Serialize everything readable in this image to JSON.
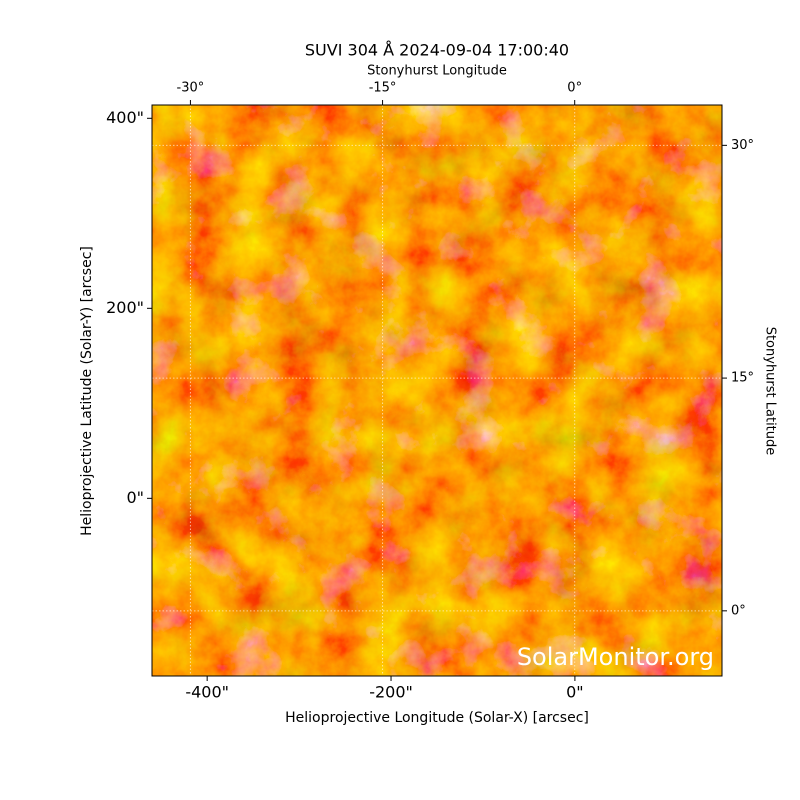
{
  "chart_data": {
    "type": "image",
    "title": "SUVI 304 Å 2024-09-04 17:00:40",
    "xlabel": "Helioprojective Longitude (Solar-X) [arcsec]",
    "ylabel": "Helioprojective Latitude (Solar-Y) [arcsec]",
    "x2label": "Stonyhurst Longitude",
    "y2label": "Stonyhurst Latitude",
    "watermark": "SolarMonitor.org",
    "xlim": [
      -460,
      160
    ],
    "ylim": [
      -187,
      414
    ],
    "xticks": [
      {
        "value": -400,
        "label": "-400\""
      },
      {
        "value": -200,
        "label": "-200\""
      },
      {
        "value": 0,
        "label": "0\""
      }
    ],
    "yticks": [
      {
        "value": 0,
        "label": "0\""
      },
      {
        "value": 200,
        "label": "200\""
      },
      {
        "value": 400,
        "label": "400\""
      }
    ],
    "x2lim": [
      -33,
      11.5
    ],
    "x2ticks": [
      {
        "value": -30,
        "label": "-30°"
      },
      {
        "value": -15,
        "label": "-15°"
      },
      {
        "value": 0,
        "label": "0°"
      }
    ],
    "y2lim": [
      -4.2,
      32.6
    ],
    "y2ticks": [
      {
        "value": 0,
        "label": "0°"
      },
      {
        "value": 15,
        "label": "15°"
      },
      {
        "value": 30,
        "label": "30°"
      }
    ],
    "grid": true
  }
}
